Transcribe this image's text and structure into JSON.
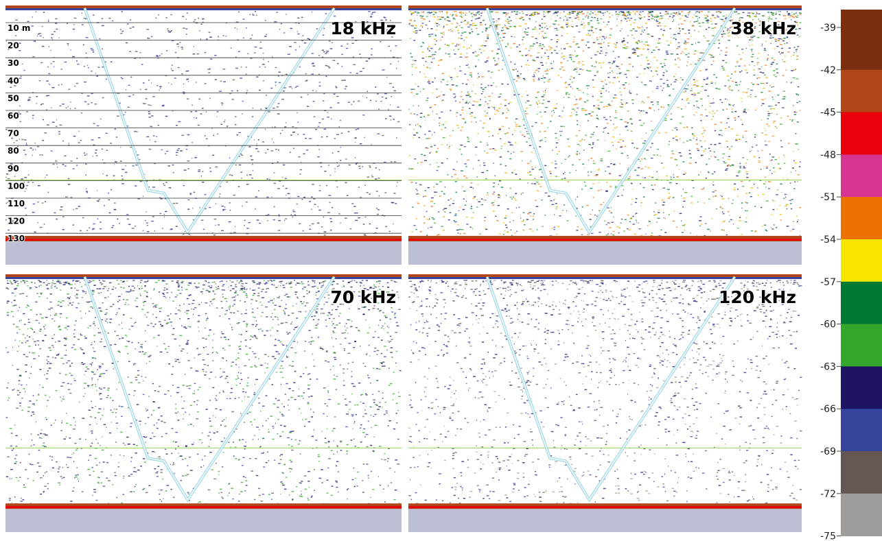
{
  "panels": [
    {
      "label": "18 kHz"
    },
    {
      "label": "38 kHz"
    },
    {
      "label": "70 kHz"
    },
    {
      "label": "120 kHz"
    }
  ],
  "depth_labels": [
    "10 m",
    "20",
    "30",
    "40",
    "50",
    "60",
    "70",
    "80",
    "90",
    "100",
    "110",
    "120",
    "130"
  ],
  "colorbar": {
    "ticks": [
      -39,
      -42,
      -45,
      -48,
      -51,
      -54,
      -57,
      -60,
      -63,
      -66,
      -69,
      -72,
      -75
    ],
    "colors": [
      "#7a2e0e",
      "#b0461a",
      "#e8000b",
      "#d63591",
      "#ec7200",
      "#f7e600",
      "#007a33",
      "#34a82c",
      "#1e1464",
      "#35439b",
      "#625752",
      "#a09c99"
    ]
  }
}
